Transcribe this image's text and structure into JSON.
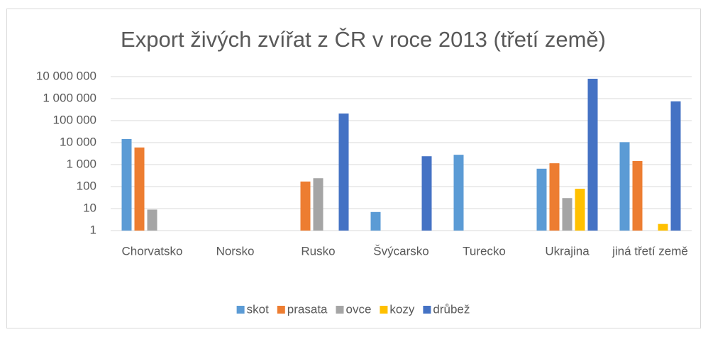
{
  "chart_data": {
    "type": "bar",
    "title": "Export živých zvířat z ČR v roce 2013 (třetí země)",
    "categories": [
      "Chorvatsko",
      "Norsko",
      "Rusko",
      "Švýcarsko",
      "Turecko",
      "Ukrajina",
      "jiná třetí země"
    ],
    "series": [
      {
        "name": "skot",
        "color": "#5b9bd5",
        "values": [
          14500,
          null,
          null,
          7,
          2800,
          650,
          10500
        ]
      },
      {
        "name": "prasata",
        "color": "#ed7d31",
        "values": [
          6000,
          null,
          170,
          null,
          null,
          1150,
          1450
        ]
      },
      {
        "name": "ovce",
        "color": "#a5a5a5",
        "values": [
          9,
          null,
          240,
          null,
          null,
          30,
          null
        ]
      },
      {
        "name": "kozy",
        "color": "#ffc000",
        "values": [
          null,
          null,
          null,
          null,
          null,
          80,
          2
        ]
      },
      {
        "name": "drůbež",
        "color": "#4472c4",
        "values": [
          null,
          null,
          210000,
          2400,
          null,
          8000000,
          750000
        ]
      }
    ],
    "log_scale": true,
    "ylim": [
      1,
      10000000
    ],
    "yticks": [
      1,
      10,
      100,
      {
        "value": 1000,
        "label": "1 000"
      },
      {
        "value": 10000,
        "label": "10 000"
      },
      {
        "value": 100000,
        "label": "100 000"
      },
      {
        "value": 1000000,
        "label": "1 000 000"
      },
      {
        "value": 10000000,
        "label": "10 000 000"
      }
    ],
    "grid": true,
    "legend": "bottom"
  }
}
